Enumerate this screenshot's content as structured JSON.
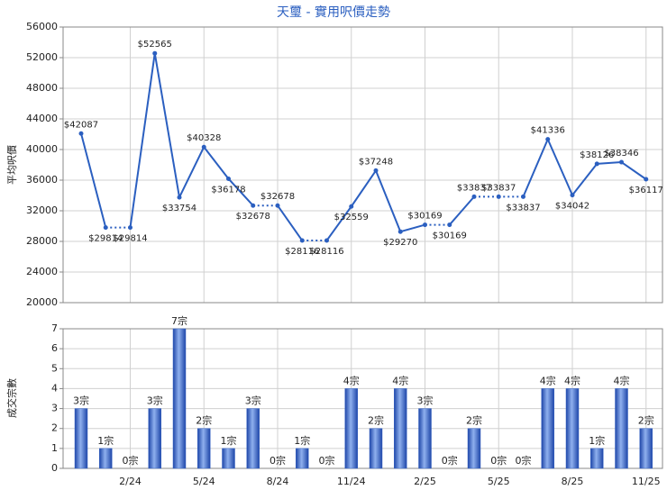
{
  "chart_data": [
    {
      "type": "line",
      "title": "天璽 - 實用呎價走勢",
      "y_label": "平均呎價",
      "color": "#2b5fc0",
      "values": [
        42087,
        29814,
        29814,
        52565,
        33754,
        40328,
        36178,
        32678,
        32678,
        28116,
        28116,
        32559,
        37248,
        29270,
        30169,
        30169,
        33837,
        33837,
        33837,
        41336,
        34042,
        38126,
        38346,
        36117
      ],
      "value_labels": [
        "$42087",
        "$29814",
        "$29814",
        "$52565",
        "$33754",
        "$40328",
        "$36178",
        "$32678",
        "$32678",
        "$28116",
        "$28116",
        "$32559",
        "$37248",
        "$29270",
        "$30169",
        "$30169",
        "$33837",
        "$33837",
        "$33837",
        "$41336",
        "$34042",
        "$38126",
        "$38346",
        "$36117"
      ],
      "ylim": [
        20000,
        56000
      ],
      "yticks": [
        20000,
        24000,
        28000,
        32000,
        36000,
        40000,
        44000,
        48000,
        52000,
        56000
      ],
      "grid": true
    },
    {
      "type": "bar",
      "y_label": "成交宗數",
      "color": "#3a66c4",
      "categories": [
        null,
        null,
        "2/24",
        null,
        null,
        "5/24",
        null,
        null,
        "8/24",
        null,
        null,
        "11/24",
        null,
        null,
        "2/25",
        null,
        null,
        "5/25",
        null,
        null,
        "8/25",
        null,
        null,
        "11/25"
      ],
      "values": [
        3,
        1,
        0,
        3,
        7,
        2,
        1,
        3,
        0,
        1,
        0,
        4,
        2,
        4,
        3,
        0,
        2,
        0,
        0,
        4,
        4,
        1,
        4,
        2
      ],
      "value_labels": [
        "3宗",
        "1宗",
        "0宗",
        "3宗",
        "7宗",
        "2宗",
        "1宗",
        "3宗",
        "0宗",
        "1宗",
        "0宗",
        "4宗",
        "2宗",
        "4宗",
        "3宗",
        "0宗",
        "2宗",
        "0宗",
        "0宗",
        "4宗",
        "4宗",
        "1宗",
        "4宗",
        "2宗"
      ],
      "ylim": [
        0,
        7
      ],
      "yticks": [
        0,
        1,
        2,
        3,
        4,
        5,
        6,
        7
      ],
      "grid": true
    }
  ]
}
